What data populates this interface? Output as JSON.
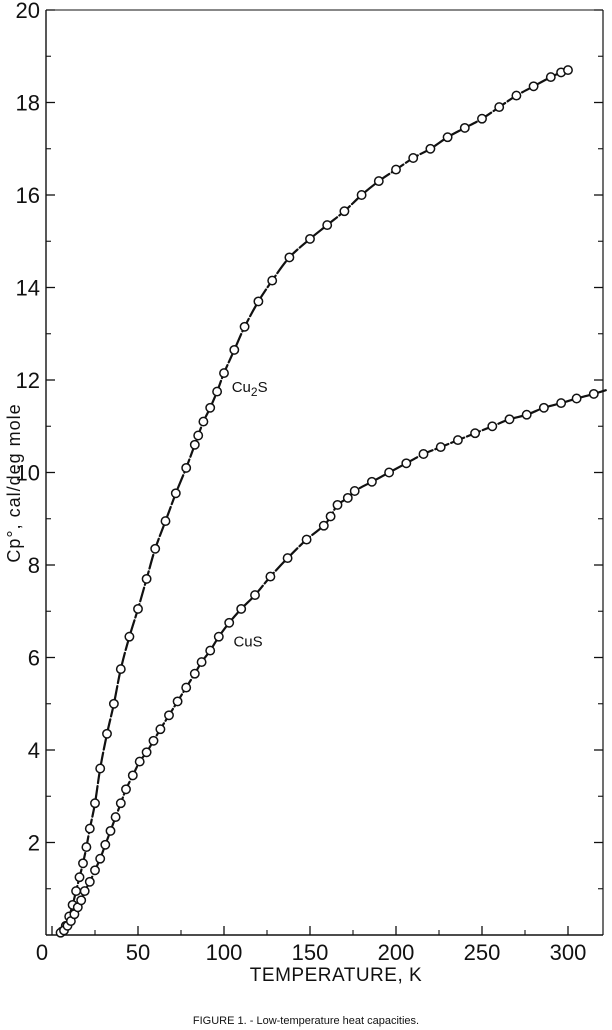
{
  "chart_data": {
    "type": "scatter",
    "title": "",
    "xlabel": "TEMPERATURE, K",
    "ylabel": "Cp°, cal/deg mole",
    "xlim": [
      0,
      325
    ],
    "ylim": [
      0,
      20
    ],
    "x_ticks": [
      "0",
      "50",
      "100",
      "150",
      "200",
      "250",
      "300"
    ],
    "x_tick_values": [
      0,
      50,
      100,
      150,
      200,
      250,
      300
    ],
    "y_ticks": [
      "2",
      "4",
      "6",
      "8",
      "10",
      "12",
      "14",
      "16",
      "18",
      "20"
    ],
    "y_tick_values": [
      2,
      4,
      6,
      8,
      10,
      12,
      14,
      16,
      18,
      20
    ],
    "grid": false,
    "caption": "FIGURE 1. - Low-temperature heat capacities.",
    "series": [
      {
        "name": "Cu2S",
        "label_pos": [
          101,
          11.85
        ],
        "x": [
          6,
          8,
          10,
          12,
          14,
          16,
          18,
          20,
          22,
          25,
          28,
          32,
          36,
          40,
          45,
          50,
          55,
          60,
          66,
          72,
          78,
          83,
          85,
          88,
          92,
          96,
          100,
          106,
          112,
          120,
          128,
          138,
          150,
          160,
          170,
          180,
          190,
          200,
          210,
          220,
          230,
          240,
          250,
          260,
          270,
          280,
          290,
          296,
          300
        ],
        "y": [
          0.08,
          0.2,
          0.4,
          0.65,
          0.95,
          1.25,
          1.55,
          1.9,
          2.3,
          2.85,
          3.6,
          4.35,
          5.0,
          5.75,
          6.45,
          7.05,
          7.7,
          8.35,
          8.95,
          9.55,
          10.1,
          10.6,
          10.8,
          11.1,
          11.4,
          11.75,
          12.15,
          12.65,
          13.15,
          13.7,
          14.15,
          14.65,
          15.05,
          15.35,
          15.65,
          16.0,
          16.3,
          16.55,
          16.8,
          17.0,
          17.25,
          17.45,
          17.65,
          17.9,
          18.15,
          18.35,
          18.55,
          18.65,
          18.7
        ]
      },
      {
        "name": "CuS",
        "label_pos": [
          102,
          6.35
        ],
        "x": [
          5,
          7,
          9,
          11,
          13,
          15,
          17,
          19,
          22,
          25,
          28,
          31,
          34,
          37,
          40,
          43,
          47,
          51,
          55,
          59,
          63,
          68,
          73,
          78,
          83,
          87,
          92,
          97,
          103,
          110,
          118,
          127,
          137,
          148,
          158,
          162,
          166,
          172,
          176,
          186,
          196,
          206,
          216,
          226,
          236,
          246,
          256,
          266,
          276,
          286,
          296,
          305,
          315
        ],
        "y": [
          0.05,
          0.1,
          0.2,
          0.3,
          0.45,
          0.6,
          0.75,
          0.95,
          1.15,
          1.4,
          1.65,
          1.95,
          2.25,
          2.55,
          2.85,
          3.15,
          3.45,
          3.75,
          3.95,
          4.2,
          4.45,
          4.75,
          5.05,
          5.35,
          5.65,
          5.9,
          6.15,
          6.45,
          6.75,
          7.05,
          7.35,
          7.75,
          8.15,
          8.55,
          8.85,
          9.05,
          9.3,
          9.45,
          9.6,
          9.8,
          10.0,
          10.2,
          10.4,
          10.55,
          10.7,
          10.85,
          11.0,
          11.15,
          11.25,
          11.4,
          11.5,
          11.6,
          11.7
        ]
      }
    ]
  }
}
